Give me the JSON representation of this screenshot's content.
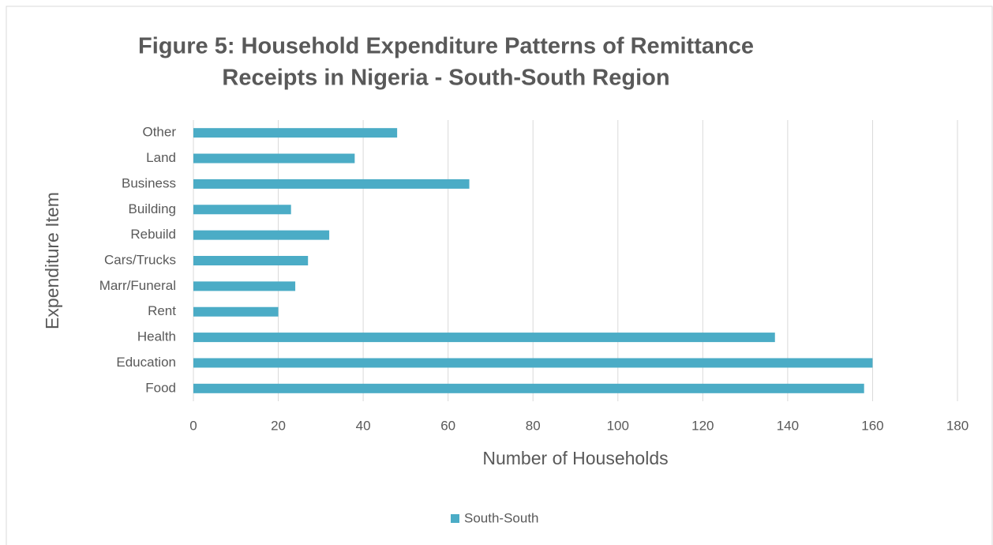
{
  "chart_data": {
    "type": "bar",
    "orientation": "horizontal",
    "title": [
      "Figure 5: Household Expenditure Patterns of Remittance",
      "Receipts in Nigeria - South-South Region"
    ],
    "xlabel": "Number of Households",
    "ylabel": "Expenditure Item",
    "categories": [
      "Food",
      "Education",
      "Health",
      "Rent",
      "Marr/Funeral",
      "Cars/Trucks",
      "Rebuild",
      "Building",
      "Business",
      "Land",
      "Other"
    ],
    "series": [
      {
        "name": "South-South",
        "color": "#4bacc6",
        "values": [
          158,
          160,
          137,
          20,
          24,
          27,
          32,
          23,
          65,
          38,
          48
        ]
      }
    ],
    "xlim": [
      0,
      180
    ],
    "xticks": [
      0,
      20,
      40,
      60,
      80,
      100,
      120,
      140,
      160,
      180
    ],
    "grid": true,
    "legend": "bottom"
  }
}
